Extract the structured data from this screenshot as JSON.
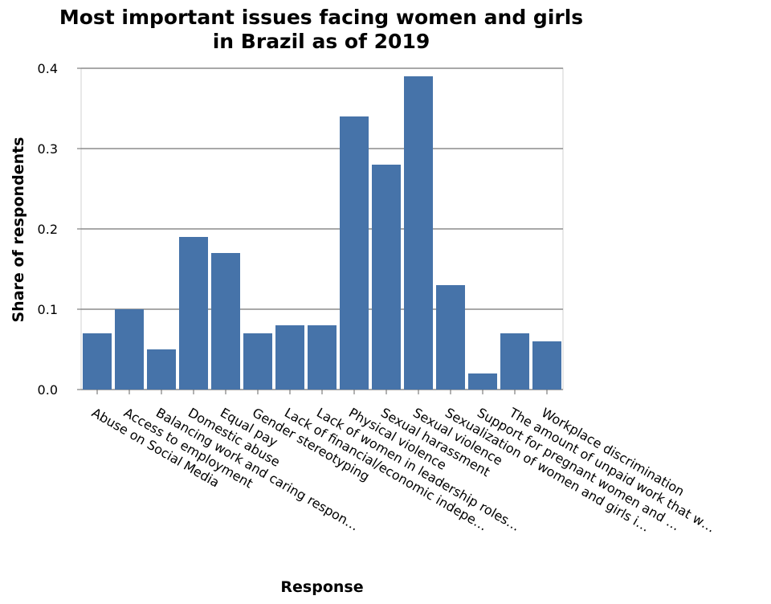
{
  "chart_data": {
    "type": "bar",
    "title": [
      "Most important issues facing women and girls",
      "in Brazil as of 2019"
    ],
    "xlabel": "Response",
    "ylabel": "Share of respondents",
    "ylim": [
      0,
      0.4
    ],
    "yticks": [
      "0.0",
      "0.1",
      "0.2",
      "0.3",
      "0.4"
    ],
    "grid": true,
    "bar_color": "#4673a9",
    "categories": [
      "Abuse on Social Media",
      "Access to employment",
      "Balancing work and caring respon…",
      "Domestic abuse",
      "Equal pay",
      "Gender stereotyping",
      "Lack of financial/economic indepe…",
      "Lack of women in leadership roles…",
      "Physical violence",
      "Sexual harassment",
      "Sexual violence",
      "Sexualization of women and girls i…",
      "Support for pregnant women and …",
      "The amount of unpaid work that w…",
      "Workplace discrimination"
    ],
    "values": [
      0.07,
      0.1,
      0.05,
      0.19,
      0.17,
      0.07,
      0.08,
      0.08,
      0.34,
      0.28,
      0.39,
      0.13,
      0.02,
      0.07,
      0.06
    ]
  }
}
